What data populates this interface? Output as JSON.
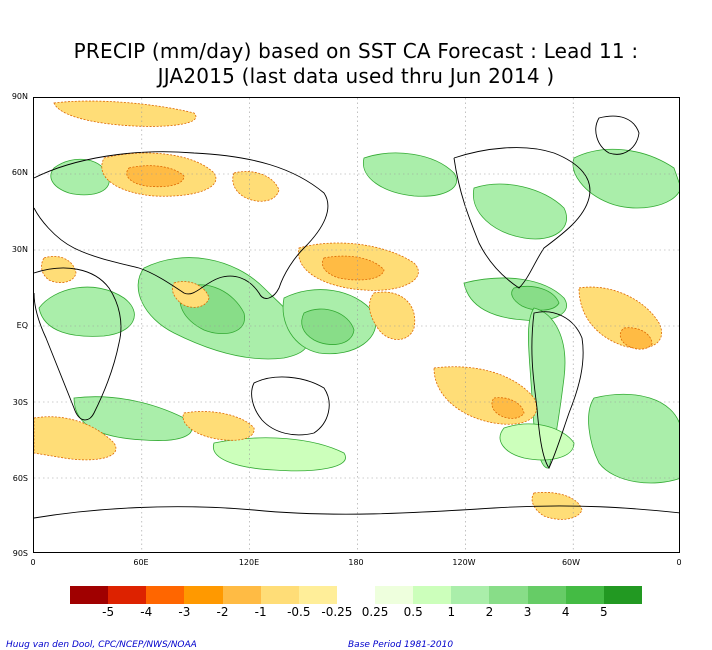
{
  "title": {
    "line1": "PRECIP (mm/day) based on SST CA Forecast : Lead 11 :",
    "line2": "JJA2015 (last data used thru Jun 2014 )"
  },
  "map": {
    "lat_labels": [
      "90N",
      "60N",
      "30N",
      "EQ",
      "30S",
      "60S",
      "90S"
    ],
    "lon_labels": [
      "0",
      "60E",
      "120E",
      "180",
      "120W",
      "60W",
      "0"
    ]
  },
  "colorbar": {
    "colors": [
      "#a00000",
      "#dd2200",
      "#ff6600",
      "#ff9900",
      "#ffbb44",
      "#ffdd77",
      "#ffee99",
      "#ffffff",
      "#eeffdd",
      "#ccffbb",
      "#aaeeaa",
      "#88dd88",
      "#66cc66",
      "#44bb44",
      "#229922"
    ],
    "labels": [
      "-5",
      "-4",
      "-3",
      "-2",
      "-1",
      "-0.5",
      "-0.25",
      "0.25",
      "0.5",
      "1",
      "2",
      "3",
      "4",
      "5"
    ]
  },
  "footer": {
    "credit": "Huug van den Dool, CPC/NCEP/NWS/NOAA",
    "base_period": "Base Period 1981-2010"
  }
}
